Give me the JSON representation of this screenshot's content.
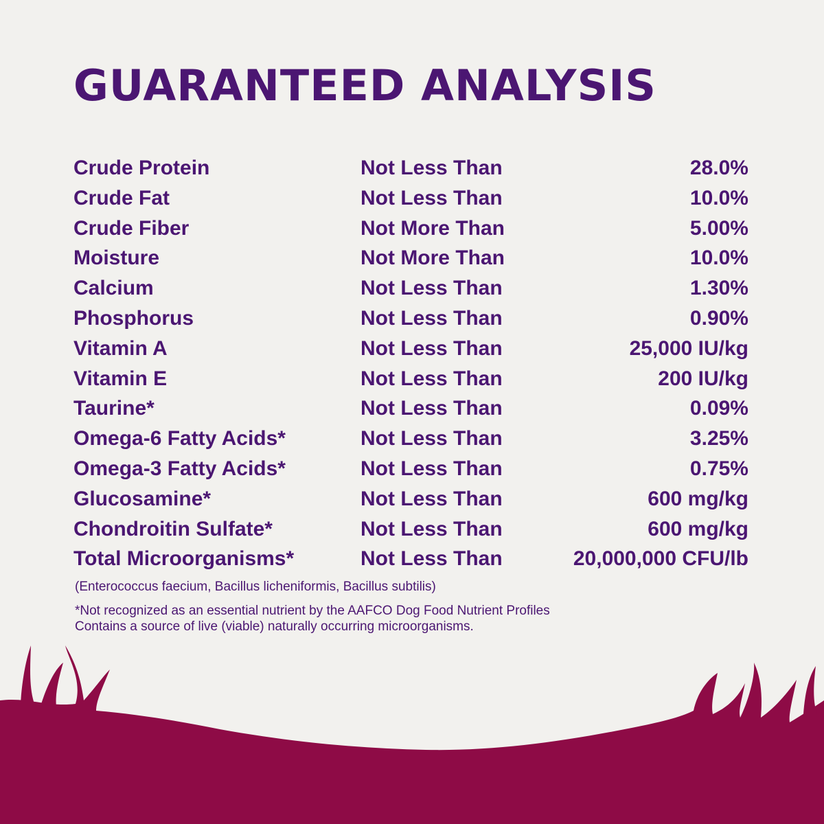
{
  "title": "GUARANTEED ANALYSIS",
  "table": {
    "rows": [
      [
        "Crude Protein",
        "Not Less Than",
        "28.0%"
      ],
      [
        "Crude Fat",
        "Not Less Than",
        "10.0%"
      ],
      [
        "Crude Fiber",
        "Not More Than",
        "5.00%"
      ],
      [
        "Moisture",
        "Not More Than",
        "10.0%"
      ],
      [
        "Calcium",
        "Not Less Than",
        "1.30%"
      ],
      [
        "Phosphorus",
        "Not Less Than",
        "0.90%"
      ],
      [
        "Vitamin A",
        "Not Less Than",
        "25,000 IU/kg"
      ],
      [
        "Vitamin E",
        "Not Less Than",
        "200 IU/kg"
      ],
      [
        "Taurine*",
        "Not Less Than",
        "0.09%"
      ],
      [
        "Omega-6 Fatty Acids*",
        "Not Less Than",
        "3.25%"
      ],
      [
        "Omega-3 Fatty Acids*",
        "Not Less Than",
        "0.75%"
      ],
      [
        "Glucosamine*",
        "Not Less Than",
        "600 mg/kg"
      ],
      [
        "Chondroitin Sulfate*",
        "Not Less Than",
        "600 mg/kg"
      ],
      [
        "Total Microorganisms*",
        "Not Less Than",
        "20,000,000 CFU/lb"
      ]
    ]
  },
  "microorganisms_note": "(Enterococcus faecium, Bacillus licheniformis, Bacillus subtilis)",
  "footnotes": [
    "*Not recognized as an essential nutrient by the AAFCO Dog Food Nutrient Profiles",
    "Contains a source of live (viable) naturally occurring microorganisms."
  ]
}
